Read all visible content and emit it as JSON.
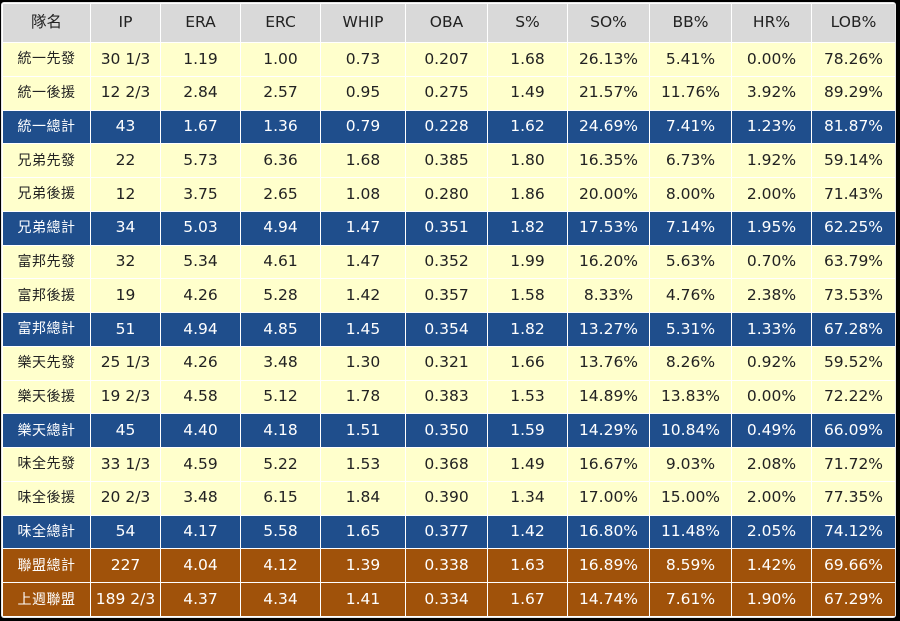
{
  "columns": [
    "隊名",
    "IP",
    "ERA",
    "ERC",
    "WHIP",
    "OBA",
    "S%",
    "SO%",
    "BB%",
    "HR%",
    "LOB%"
  ],
  "rows": [
    {
      "kind": "starter",
      "cells": [
        "統一先發",
        "30 1/3",
        "1.19",
        "1.00",
        "0.73",
        "0.207",
        "1.68",
        "26.13%",
        "5.41%",
        "0.00%",
        "78.26%"
      ]
    },
    {
      "kind": "relief",
      "cells": [
        "統一後援",
        "12 2/3",
        "2.84",
        "2.57",
        "0.95",
        "0.275",
        "1.49",
        "21.57%",
        "11.76%",
        "3.92%",
        "89.29%"
      ]
    },
    {
      "kind": "total",
      "cells": [
        "統一總計",
        "43",
        "1.67",
        "1.36",
        "0.79",
        "0.228",
        "1.62",
        "24.69%",
        "7.41%",
        "1.23%",
        "81.87%"
      ]
    },
    {
      "kind": "starter",
      "cells": [
        "兄弟先發",
        "22",
        "5.73",
        "6.36",
        "1.68",
        "0.385",
        "1.80",
        "16.35%",
        "6.73%",
        "1.92%",
        "59.14%"
      ]
    },
    {
      "kind": "relief",
      "cells": [
        "兄弟後援",
        "12",
        "3.75",
        "2.65",
        "1.08",
        "0.280",
        "1.86",
        "20.00%",
        "8.00%",
        "2.00%",
        "71.43%"
      ]
    },
    {
      "kind": "total",
      "cells": [
        "兄弟總計",
        "34",
        "5.03",
        "4.94",
        "1.47",
        "0.351",
        "1.82",
        "17.53%",
        "7.14%",
        "1.95%",
        "62.25%"
      ]
    },
    {
      "kind": "starter",
      "cells": [
        "富邦先發",
        "32",
        "5.34",
        "4.61",
        "1.47",
        "0.352",
        "1.99",
        "16.20%",
        "5.63%",
        "0.70%",
        "63.79%"
      ]
    },
    {
      "kind": "relief",
      "cells": [
        "富邦後援",
        "19",
        "4.26",
        "5.28",
        "1.42",
        "0.357",
        "1.58",
        "8.33%",
        "4.76%",
        "2.38%",
        "73.53%"
      ]
    },
    {
      "kind": "total",
      "cells": [
        "富邦總計",
        "51",
        "4.94",
        "4.85",
        "1.45",
        "0.354",
        "1.82",
        "13.27%",
        "5.31%",
        "1.33%",
        "67.28%"
      ]
    },
    {
      "kind": "starter",
      "cells": [
        "樂天先發",
        "25 1/3",
        "4.26",
        "3.48",
        "1.30",
        "0.321",
        "1.66",
        "13.76%",
        "8.26%",
        "0.92%",
        "59.52%"
      ]
    },
    {
      "kind": "relief",
      "cells": [
        "樂天後援",
        "19 2/3",
        "4.58",
        "5.12",
        "1.78",
        "0.383",
        "1.53",
        "14.89%",
        "13.83%",
        "0.00%",
        "72.22%"
      ]
    },
    {
      "kind": "total",
      "cells": [
        "樂天總計",
        "45",
        "4.40",
        "4.18",
        "1.51",
        "0.350",
        "1.59",
        "14.29%",
        "10.84%",
        "0.49%",
        "66.09%"
      ]
    },
    {
      "kind": "starter",
      "cells": [
        "味全先發",
        "33 1/3",
        "4.59",
        "5.22",
        "1.53",
        "0.368",
        "1.49",
        "16.67%",
        "9.03%",
        "2.08%",
        "71.72%"
      ]
    },
    {
      "kind": "relief",
      "cells": [
        "味全後援",
        "20 2/3",
        "3.48",
        "6.15",
        "1.84",
        "0.390",
        "1.34",
        "17.00%",
        "15.00%",
        "2.00%",
        "77.35%"
      ]
    },
    {
      "kind": "total",
      "cells": [
        "味全總計",
        "54",
        "4.17",
        "5.58",
        "1.65",
        "0.377",
        "1.42",
        "16.80%",
        "11.48%",
        "2.05%",
        "74.12%"
      ]
    },
    {
      "kind": "league",
      "cells": [
        "聯盟總計",
        "227",
        "4.04",
        "4.12",
        "1.39",
        "0.338",
        "1.63",
        "16.89%",
        "8.59%",
        "1.42%",
        "69.66%"
      ]
    },
    {
      "kind": "league",
      "cells": [
        "上週聯盟",
        "189 2/3",
        "4.37",
        "4.34",
        "1.41",
        "0.334",
        "1.67",
        "14.74%",
        "7.61%",
        "1.90%",
        "67.29%"
      ]
    }
  ],
  "colors": {
    "header_bg": "#d9d9d9",
    "row_bg": "#ffffcc",
    "team_total_bg": "#1f4e8c",
    "league_bg": "#a0520a",
    "highlight_text": "#ffffff"
  }
}
